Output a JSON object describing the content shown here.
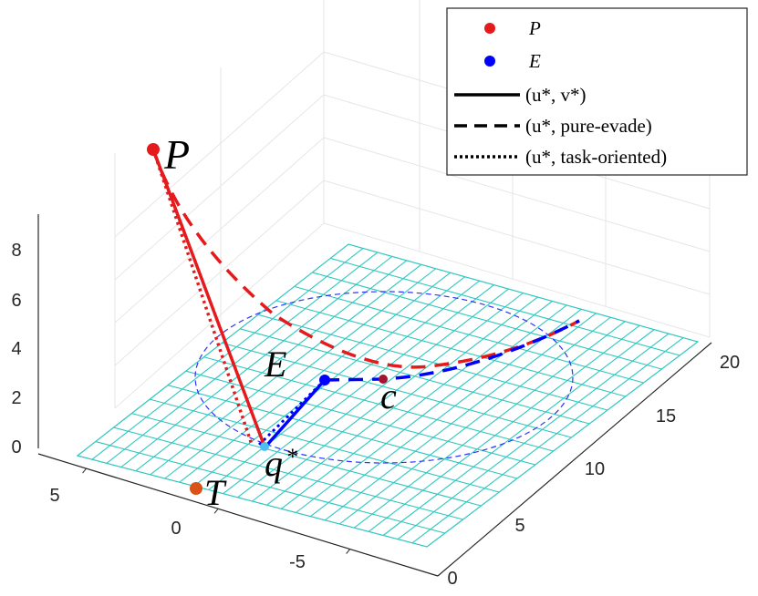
{
  "chart_data": {
    "type": "line",
    "projection": "3d",
    "grid": true,
    "legend_placement": "top-right",
    "axes": {
      "x": {
        "ticks": [
          "5",
          "0",
          "-5"
        ]
      },
      "y": {
        "ticks": [
          "0",
          "5",
          "10",
          "15",
          "20"
        ]
      },
      "z": {
        "ticks": [
          "0",
          "2",
          "4",
          "6",
          "8"
        ]
      }
    },
    "legend": [
      {
        "label": "P",
        "marker": "dot",
        "color": "#e41a1c"
      },
      {
        "label": "E",
        "marker": "dot",
        "color": "#0000ff"
      },
      {
        "label": "(u*, v*)",
        "style": "solid"
      },
      {
        "label": "(u*, pure-evade)",
        "style": "dashed"
      },
      {
        "label": "(u*, task-oriented)",
        "style": "dotted"
      }
    ],
    "annotations": {
      "P": "P",
      "E": "E",
      "T": "T",
      "c": "c",
      "q": "q",
      "q_superscript": "*"
    },
    "colors": {
      "pursuer": "#e41a1c",
      "evader": "#0000ff",
      "target": "#d95319",
      "capture_point": "#4dbeee",
      "floor_grid": "#2ec7c0",
      "circle": "#3030ff"
    }
  }
}
